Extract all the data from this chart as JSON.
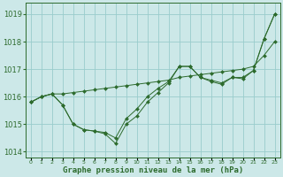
{
  "title": "Graphe pression niveau de la mer (hPa)",
  "bg_color": "#cce8e8",
  "grid_color": "#99cccc",
  "line_color": "#2d6b2d",
  "marker_color": "#2d6b2d",
  "xlim": [
    -0.5,
    23.5
  ],
  "ylim": [
    1013.8,
    1019.4
  ],
  "yticks": [
    1014,
    1015,
    1016,
    1017,
    1018,
    1019
  ],
  "xticks": [
    0,
    1,
    2,
    3,
    4,
    5,
    6,
    7,
    8,
    9,
    10,
    11,
    12,
    13,
    14,
    15,
    16,
    17,
    18,
    19,
    20,
    21,
    22,
    23
  ],
  "series": [
    [
      1015.8,
      1016.0,
      1016.1,
      1016.1,
      1016.15,
      1016.2,
      1016.25,
      1016.3,
      1016.35,
      1016.4,
      1016.45,
      1016.5,
      1016.55,
      1016.6,
      1016.7,
      1016.75,
      1016.8,
      1016.85,
      1016.9,
      1016.95,
      1017.0,
      1017.1,
      1017.5,
      1018.0
    ],
    [
      1015.8,
      1016.0,
      1016.1,
      1015.7,
      1015.0,
      1014.8,
      1014.75,
      1014.7,
      1014.5,
      1015.2,
      1015.55,
      1016.0,
      1016.3,
      1016.55,
      1017.1,
      1017.1,
      1016.7,
      1016.6,
      1016.5,
      1016.7,
      1016.7,
      1016.95,
      1018.1,
      1019.0
    ],
    [
      1015.8,
      1016.0,
      1016.1,
      1015.7,
      1015.0,
      1014.8,
      1014.75,
      1014.65,
      1014.3,
      1015.0,
      1015.3,
      1015.8,
      1016.15,
      1016.5,
      1017.1,
      1017.1,
      1016.7,
      1016.55,
      1016.45,
      1016.7,
      1016.65,
      1016.95,
      1018.1,
      1019.0
    ]
  ]
}
